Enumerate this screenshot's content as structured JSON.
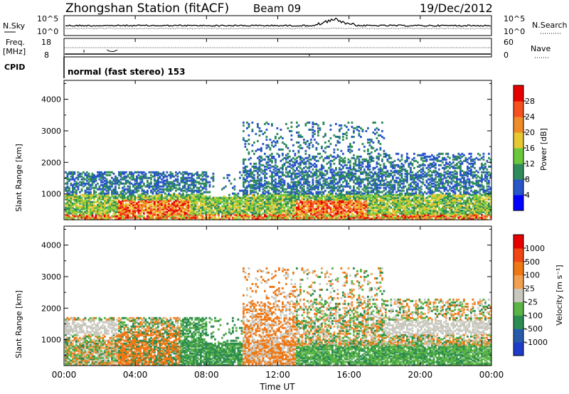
{
  "header": {
    "station": "Zhongshan Station (fitACF)",
    "beam": "Beam 09",
    "date": "19/Dec/2012"
  },
  "top_labels": {
    "nsky": "N.Sky",
    "nsearch": "N.Search",
    "freq_l1": "Freq.",
    "freq_l2": "[MHz]",
    "nave": "Nave",
    "cpid": "CPID",
    "cpid_value": "normal (fast stereo) 153",
    "nsky_ticks": [
      "10^5",
      "10^0"
    ],
    "nsearch_ticks": [
      "10^5",
      "10^0"
    ],
    "freq_ticks": [
      "18",
      "8"
    ],
    "nave_ticks": [
      "60",
      "0"
    ]
  },
  "chart_data": [
    {
      "type": "heatmap",
      "name": "power",
      "ylabel": "Slant Range [km]",
      "ylim": [
        180,
        4600
      ],
      "yticks": [
        1000,
        2000,
        3000,
        4000
      ],
      "colorbar_label": "Power [dB]",
      "colorbar_ticks": [
        "4",
        "8",
        "12",
        "16",
        "20",
        "24",
        "28"
      ],
      "colorbar_colors": [
        "#0000ff",
        "#2855c8",
        "#2f8c5a",
        "#6bc83c",
        "#e6c832",
        "#f08c28",
        "#f5501e",
        "#e60000"
      ]
    },
    {
      "type": "heatmap",
      "name": "velocity",
      "ylabel": "Slant Range [km]",
      "ylim": [
        180,
        4600
      ],
      "yticks": [
        1000,
        2000,
        3000,
        4000
      ],
      "colorbar_label": "Velocity [m s⁻¹]",
      "colorbar_ticks": [
        "1000",
        "500",
        "100",
        "25",
        "-25",
        "-100",
        "-500",
        "-1000"
      ],
      "colorbar_colors": [
        "#1e3cc8",
        "#285aaa",
        "#2d8c50",
        "#5ab446",
        "#c8c8be",
        "#f0a050",
        "#f07814",
        "#f04614",
        "#e60000"
      ]
    }
  ],
  "xaxis": {
    "label": "Time UT",
    "ticks": [
      "00:00",
      "04:00",
      "08:00",
      "12:00",
      "16:00",
      "20:00",
      "00:00"
    ]
  }
}
